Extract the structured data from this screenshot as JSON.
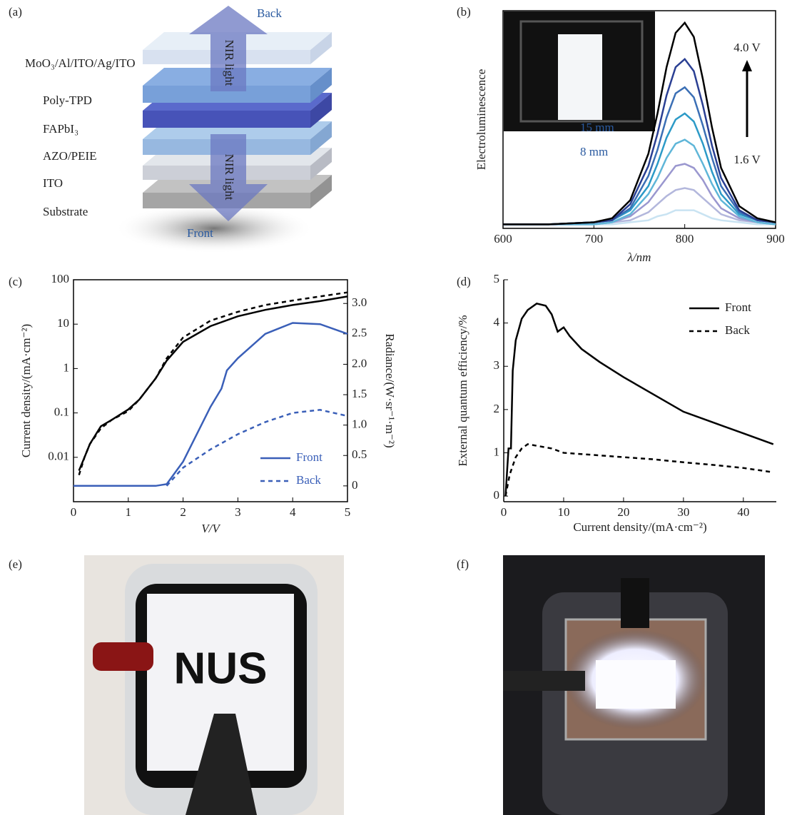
{
  "diagram": {
    "panel_label": "(a)",
    "layers": [
      "MoO₃/Al/ITO/Ag/ITO",
      "Poly-TPD",
      "FAPbI₃",
      "AZO/PEIE",
      "ITO",
      "Substrate"
    ],
    "back": "Back",
    "front": "Front",
    "arrow_label": "NIR light"
  },
  "chart_data": [
    {
      "type": "line",
      "panel_label": "(b)",
      "xlabel": "λ/nm",
      "ylabel": "Electroluminescence",
      "xlim": [
        600,
        900
      ],
      "xticks": [
        600,
        700,
        800,
        900
      ],
      "ylim": [
        0,
        1.08
      ],
      "yticks": [],
      "annotations": [
        "15 mm",
        "8 mm",
        "4.0 V",
        "1.6 V"
      ],
      "x": [
        600,
        650,
        700,
        720,
        740,
        760,
        770,
        780,
        790,
        800,
        810,
        820,
        830,
        840,
        860,
        880,
        900
      ],
      "series": [
        {
          "color": "#c9e3f2",
          "values": [
            0.02,
            0.02,
            0.02,
            0.02,
            0.03,
            0.04,
            0.06,
            0.07,
            0.09,
            0.09,
            0.09,
            0.07,
            0.05,
            0.04,
            0.03,
            0.02,
            0.02
          ]
        },
        {
          "color": "#b3b7dc",
          "values": [
            0.02,
            0.02,
            0.02,
            0.03,
            0.04,
            0.08,
            0.12,
            0.16,
            0.19,
            0.2,
            0.19,
            0.15,
            0.11,
            0.07,
            0.04,
            0.03,
            0.02
          ]
        },
        {
          "color": "#9a97cf",
          "values": [
            0.02,
            0.02,
            0.02,
            0.03,
            0.06,
            0.13,
            0.19,
            0.25,
            0.31,
            0.32,
            0.3,
            0.24,
            0.16,
            0.1,
            0.05,
            0.03,
            0.02
          ]
        },
        {
          "color": "#5fb6d8",
          "values": [
            0.02,
            0.02,
            0.02,
            0.03,
            0.07,
            0.17,
            0.25,
            0.35,
            0.42,
            0.44,
            0.41,
            0.32,
            0.22,
            0.14,
            0.06,
            0.03,
            0.02
          ]
        },
        {
          "color": "#2c9ac7",
          "values": [
            0.02,
            0.02,
            0.03,
            0.04,
            0.09,
            0.21,
            0.32,
            0.45,
            0.54,
            0.57,
            0.53,
            0.42,
            0.28,
            0.17,
            0.07,
            0.04,
            0.03
          ]
        },
        {
          "color": "#3b6fb5",
          "values": [
            0.02,
            0.02,
            0.03,
            0.04,
            0.1,
            0.26,
            0.39,
            0.55,
            0.67,
            0.7,
            0.65,
            0.51,
            0.35,
            0.21,
            0.08,
            0.04,
            0.03
          ]
        },
        {
          "color": "#2a3f93",
          "values": [
            0.02,
            0.02,
            0.03,
            0.04,
            0.12,
            0.31,
            0.47,
            0.66,
            0.8,
            0.84,
            0.78,
            0.61,
            0.41,
            0.25,
            0.09,
            0.04,
            0.03
          ]
        },
        {
          "color": "#000000",
          "values": [
            0.02,
            0.02,
            0.03,
            0.05,
            0.14,
            0.37,
            0.57,
            0.8,
            0.97,
            1.02,
            0.95,
            0.74,
            0.5,
            0.3,
            0.11,
            0.05,
            0.03
          ]
        }
      ]
    },
    {
      "type": "line",
      "panel_label": "(c)",
      "xlabel": "V/V",
      "ylabel": "Current density/(mA·cm⁻²)",
      "y2label": "Radiance/(W·sr⁻¹·m⁻²)",
      "xlim": [
        0,
        5
      ],
      "xticks": [
        0,
        1,
        2,
        3,
        4,
        5
      ],
      "ylog": true,
      "ylim": [
        0.001,
        100
      ],
      "yticks": [
        0.01,
        0.1,
        1,
        10,
        100
      ],
      "y2lim": [
        -0.26,
        3.39
      ],
      "y2ticks": [
        0,
        0.5,
        {
          "value": 1,
          "label": "1.0"
        },
        1.5,
        {
          "value": 2,
          "label": "2.0"
        },
        2.5,
        {
          "value": 3,
          "label": "3.0"
        }
      ],
      "legend": "lower right",
      "series": [
        {
          "color": "#000000",
          "linestyle": "solid",
          "x": [
            0.1,
            0.2,
            0.3,
            0.5,
            0.7,
            1.0,
            1.2,
            1.5,
            1.7,
            2.0,
            2.5,
            3.0,
            3.5,
            4.0,
            4.5,
            5.0
          ],
          "values": [
            0.005,
            0.01,
            0.02,
            0.05,
            0.07,
            0.12,
            0.2,
            0.6,
            1.5,
            4,
            9,
            15,
            21,
            27,
            33,
            42
          ]
        },
        {
          "color": "#000000",
          "linestyle": "dashed",
          "x": [
            0.1,
            0.2,
            0.3,
            0.5,
            0.7,
            1.0,
            1.2,
            1.5,
            1.7,
            2.0,
            2.5,
            3.0,
            3.5,
            4.0,
            4.5,
            5.0
          ],
          "values": [
            0.004,
            0.01,
            0.02,
            0.045,
            0.07,
            0.11,
            0.2,
            0.6,
            1.7,
            5,
            12,
            19,
            27,
            34,
            42,
            52
          ]
        },
        {
          "name": "Front",
          "color": "#3a5fb8",
          "linestyle": "solid",
          "axis": "y2",
          "x": [
            0,
            1.5,
            1.7,
            2.0,
            2.5,
            2.7,
            2.8,
            3.0,
            3.5,
            4.0,
            4.5,
            5.0
          ],
          "values": [
            0,
            0,
            0.03,
            0.4,
            1.3,
            1.6,
            1.9,
            2.1,
            2.5,
            2.68,
            2.66,
            2.5
          ]
        },
        {
          "name": "Back",
          "color": "#3a5fb8",
          "linestyle": "dashed",
          "axis": "y2",
          "x": [
            1.7,
            2.0,
            2.5,
            3.0,
            3.5,
            4.0,
            4.5,
            5.0
          ],
          "values": [
            0,
            0.3,
            0.6,
            0.85,
            1.05,
            1.2,
            1.25,
            1.15
          ]
        }
      ]
    },
    {
      "type": "line",
      "panel_label": "(d)",
      "xlabel": "Current density/(mA·cm⁻²)",
      "ylabel": "External quantum efficiency/%",
      "xlim": [
        0,
        45.5
      ],
      "xticks": [
        0,
        10,
        20,
        30,
        40
      ],
      "ylim": [
        -0.13,
        5
      ],
      "yticks": [
        0,
        1,
        2,
        3,
        4,
        5
      ],
      "legend": "upper right",
      "series": [
        {
          "name": "Front",
          "color": "#000000",
          "linestyle": "solid",
          "x": [
            0.3,
            0.8,
            1.2,
            1.5,
            2,
            3,
            4,
            5.5,
            7,
            8,
            9,
            10,
            11,
            13,
            16,
            20,
            25,
            30,
            35,
            40,
            45
          ],
          "values": [
            0,
            1.1,
            1.1,
            2.9,
            3.6,
            4.1,
            4.3,
            4.45,
            4.4,
            4.2,
            3.8,
            3.9,
            3.7,
            3.4,
            3.1,
            2.75,
            2.35,
            1.95,
            1.7,
            1.45,
            1.2
          ]
        },
        {
          "name": "Back",
          "color": "#000000",
          "linestyle": "dashed",
          "x": [
            0.3,
            1,
            2,
            3,
            4,
            6,
            8,
            9,
            10,
            15,
            20,
            25,
            30,
            35,
            40,
            45
          ],
          "values": [
            0,
            0.5,
            0.9,
            1.1,
            1.2,
            1.15,
            1.1,
            1.05,
            1.0,
            0.95,
            0.9,
            0.85,
            0.78,
            0.72,
            0.65,
            0.55
          ]
        }
      ]
    }
  ],
  "photo_e": {
    "panel_label": "(e)",
    "screen_text": "NUS"
  },
  "photo_f": {
    "panel_label": "(f)"
  }
}
